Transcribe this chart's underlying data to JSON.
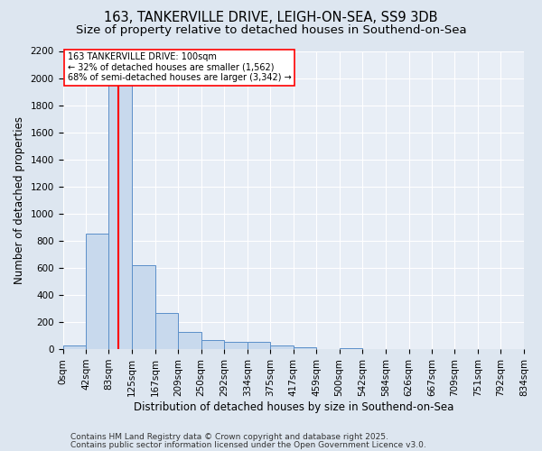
{
  "title1": "163, TANKERVILLE DRIVE, LEIGH-ON-SEA, SS9 3DB",
  "title2": "Size of property relative to detached houses in Southend-on-Sea",
  "xlabel": "Distribution of detached houses by size in Southend-on-Sea",
  "ylabel": "Number of detached properties",
  "bin_edges": [
    0,
    42,
    83,
    125,
    167,
    209,
    250,
    292,
    334,
    375,
    417,
    459,
    500,
    542,
    584,
    626,
    667,
    709,
    751,
    792,
    834
  ],
  "bar_heights": [
    28,
    850,
    1950,
    620,
    265,
    130,
    68,
    52,
    52,
    28,
    14,
    0,
    10,
    0,
    0,
    0,
    0,
    0,
    0,
    0
  ],
  "bar_color": "#c8d9ed",
  "bar_edge_color": "#5b8fc9",
  "bg_color": "#e8eef6",
  "grid_color": "#ffffff",
  "fig_bg_color": "#dde6f0",
  "red_line_x": 100,
  "ylim": [
    0,
    2200
  ],
  "yticks": [
    0,
    200,
    400,
    600,
    800,
    1000,
    1200,
    1400,
    1600,
    1800,
    2000,
    2200
  ],
  "annotation_text": "163 TANKERVILLE DRIVE: 100sqm\n← 32% of detached houses are smaller (1,562)\n68% of semi-detached houses are larger (3,342) →",
  "footer1": "Contains HM Land Registry data © Crown copyright and database right 2025.",
  "footer2": "Contains public sector information licensed under the Open Government Licence v3.0.",
  "title_fontsize": 10.5,
  "subtitle_fontsize": 9.5,
  "axis_label_fontsize": 8.5,
  "tick_fontsize": 7.5,
  "annotation_fontsize": 7.0,
  "footer_fontsize": 6.5
}
